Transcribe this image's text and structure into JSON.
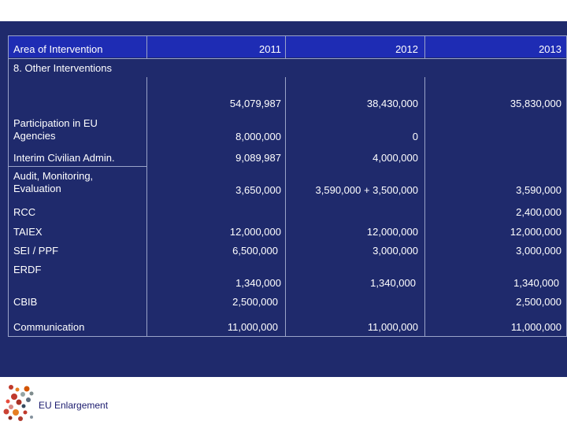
{
  "table": {
    "headers": [
      "Area of Intervention",
      "2011",
      "2012",
      "2013"
    ],
    "section_title": "8. Other Interventions",
    "totals": [
      "54,079,987",
      "38,430,000",
      "35,830,000"
    ],
    "rows": [
      {
        "label": "Participation in EU Agencies",
        "v2011": "8,000,000",
        "v2012": "0",
        "v2013": ""
      },
      {
        "label": "Interim Civilian Admin.",
        "v2011": "9,089,987",
        "v2012": "4,000,000",
        "v2013": ""
      },
      {
        "label": "Audit, Monitoring, Evaluation",
        "v2011": "3,650,000",
        "v2012": "3,590,000 + 3,500,000",
        "v2013": "3,590,000"
      },
      {
        "label": "RCC",
        "v2011": "",
        "v2012": "",
        "v2013": "2,400,000"
      },
      {
        "label": "TAIEX",
        "v2011": "12,000,000",
        "v2012": "12,000,000",
        "v2013": "12,000,000"
      },
      {
        "label": "SEI / PPF",
        "v2011": "6,500,000",
        "v2012": "3,000,000",
        "v2013": "3,000,000"
      },
      {
        "label": "ERDF",
        "v2011": "1,340,000",
        "v2012": "1,340,000",
        "v2013": "1,340,000"
      },
      {
        "label": "CBIB",
        "v2011": "2,500,000",
        "v2012": "",
        "v2013": "2,500,000"
      },
      {
        "label": "Communication",
        "v2011": "11,000,000",
        "v2012": "11,000,000",
        "v2013": "11,000,000"
      }
    ]
  },
  "footer": {
    "logo_text": "EU Enlargement",
    "logo_icon": "eu-enlargement-logo-icon"
  }
}
